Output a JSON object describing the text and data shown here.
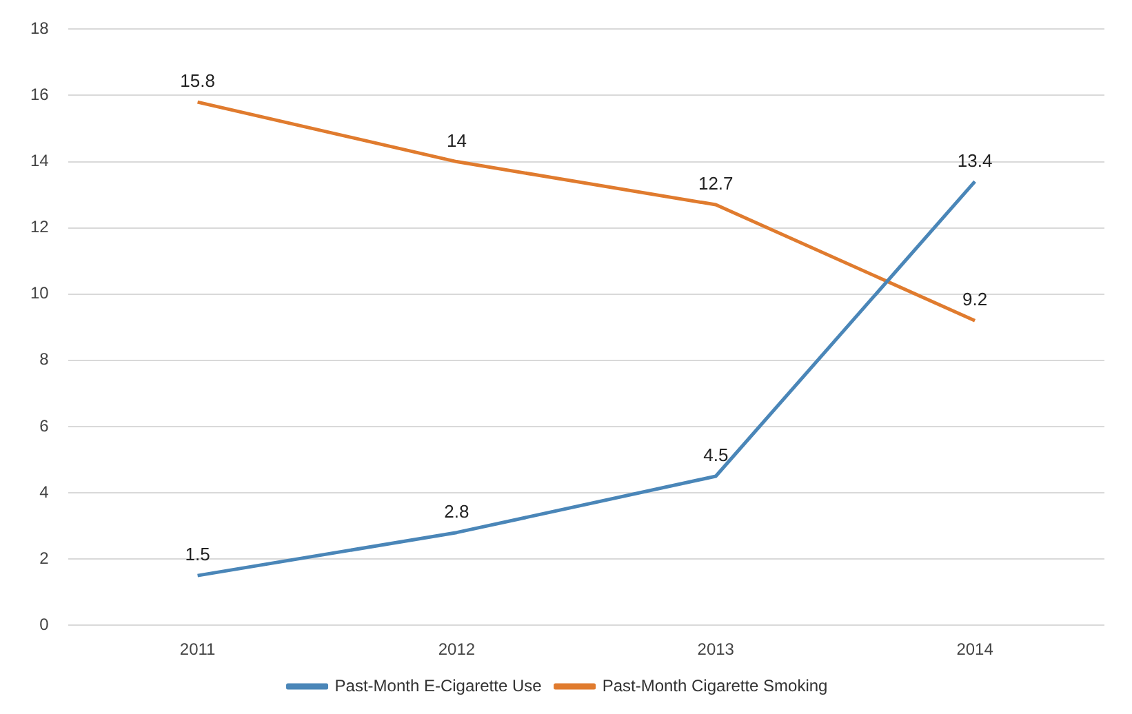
{
  "chart_data": {
    "type": "line",
    "categories": [
      "2011",
      "2012",
      "2013",
      "2014"
    ],
    "series": [
      {
        "name": "Past-Month E-Cigarette Use",
        "color": "#4a86b8",
        "values": [
          1.5,
          2.8,
          4.5,
          13.4
        ]
      },
      {
        "name": "Past-Month Cigarette Smoking",
        "color": "#e07b2e",
        "values": [
          15.8,
          14,
          12.7,
          9.2
        ]
      }
    ],
    "ylim": [
      0,
      18
    ],
    "yticks": [
      0,
      2,
      4,
      6,
      8,
      10,
      12,
      14,
      16,
      18
    ],
    "grid": "y",
    "legend": "bottom",
    "data_labels": true,
    "marker": "none",
    "line_style": "solid"
  }
}
